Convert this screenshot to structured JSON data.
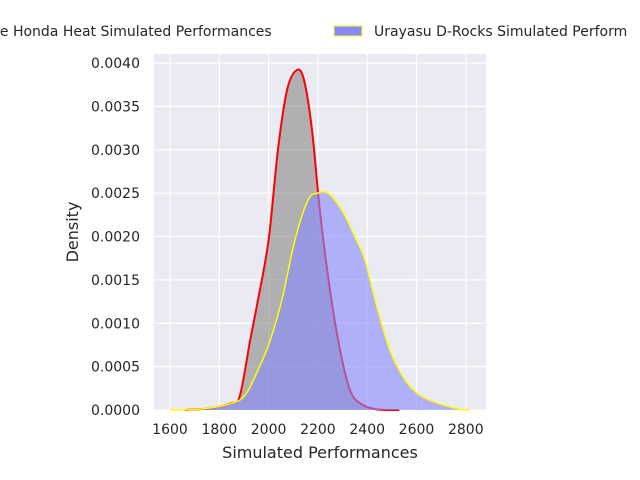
{
  "chart_data": {
    "type": "area",
    "title": "",
    "xlabel": "Simulated Performances",
    "ylabel": "Density",
    "xlim": [
      1540,
      2880
    ],
    "ylim": [
      0,
      0.0041
    ],
    "xticks": [
      1600,
      1800,
      2000,
      2200,
      2400,
      2600,
      2800
    ],
    "yticks": [
      "0.0000",
      "0.0005",
      "0.0010",
      "0.0015",
      "0.0020",
      "0.0025",
      "0.0030",
      "0.0035",
      "0.0040"
    ],
    "grid": true,
    "legend_placement": "top-center (outside, clipped)",
    "series": [
      {
        "name": "Mie Honda Heat Simulated Performances",
        "legend_label_visible": "ie Honda Heat Simulated Performances",
        "fill": "#808080",
        "line": "#ff0000",
        "x": [
          1660,
          1762,
          1851,
          1884,
          1925,
          1957,
          2000,
          2038,
          2075,
          2115,
          2144,
          2176,
          2208,
          2249,
          2290,
          2330,
          2370,
          2432,
          2530
        ],
        "y": [
          0,
          2e-05,
          8e-05,
          0.00017,
          0.0008,
          0.00127,
          0.00196,
          0.003,
          0.00369,
          0.00392,
          0.0038,
          0.00323,
          0.0023,
          0.00138,
          0.00069,
          0.00023,
          8e-05,
          1e-05,
          0
        ]
      },
      {
        "name": "Urayasu D-Rocks Simulated Performances",
        "legend_label_visible": "Urayasu D-Rocks Simulated Perform",
        "fill": "#8888ff",
        "line": "#ffff00",
        "x": [
          1600,
          1722,
          1843,
          1904,
          1957,
          2006,
          2054,
          2107,
          2160,
          2200,
          2241,
          2298,
          2350,
          2391,
          2432,
          2492,
          2553,
          2614,
          2695,
          2776,
          2815
        ],
        "y": [
          0,
          1e-05,
          7e-05,
          0.00017,
          0.00046,
          0.0008,
          0.00127,
          0.00196,
          0.00242,
          0.0025,
          0.0025,
          0.0023,
          0.002,
          0.00173,
          0.00127,
          0.00069,
          0.00035,
          0.00017,
          7e-05,
          1e-05,
          0
        ]
      }
    ]
  }
}
